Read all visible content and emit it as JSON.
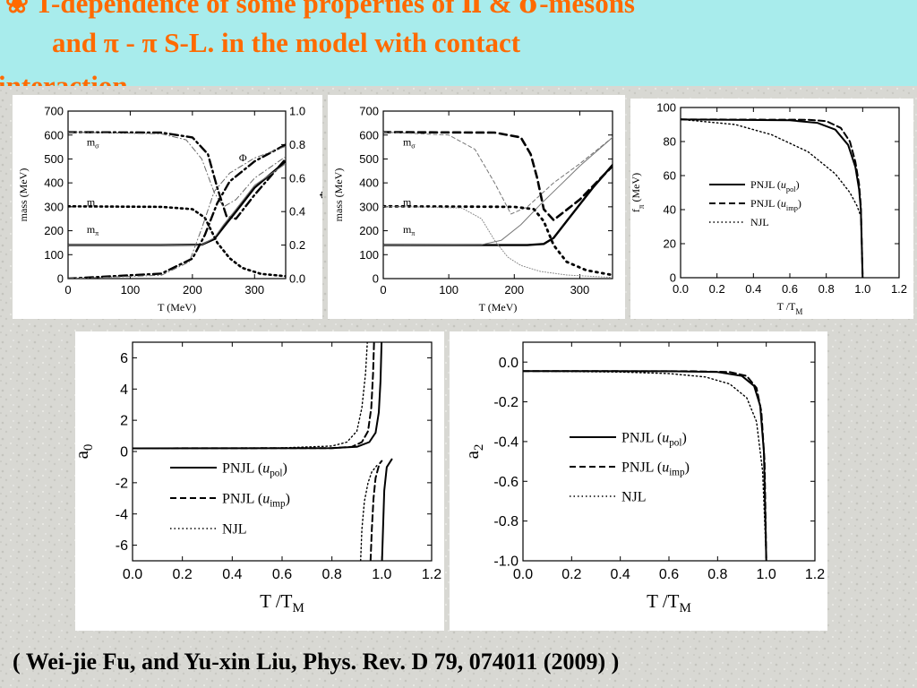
{
  "slide": {
    "title_line1_prefix": "T-dependence of some properties of ",
    "title_pi": "π",
    "title_amp": " & ",
    "title_sigma": "σ",
    "title_line1_suffix": "-mesons",
    "title_line2": "and π - π  S-L. in the model with contact",
    "title_line3": "interaction",
    "bullet_color": "#ff6a00",
    "title_color": "#ff6a00",
    "title_band_color": "#a8ecec",
    "citation": "( Wei-jie Fu, and  Yu-xin Liu,  Phys. Rev. D 79, 074011 (2009) )"
  },
  "chart_data": [
    {
      "id": "panel1",
      "type": "line",
      "xlabel": "T (MeV)",
      "ylabel": "mass (MeV)",
      "y2label": "Φ",
      "xlim": [
        0,
        350
      ],
      "ylim": [
        0,
        700
      ],
      "y2lim": [
        0,
        1.0
      ],
      "xticks": [
        0,
        100,
        200,
        300
      ],
      "yticks": [
        0,
        100,
        200,
        300,
        400,
        500,
        600,
        700
      ],
      "y2ticks": [
        "0.0",
        "0.2",
        "0.4",
        "0.6",
        "0.8",
        "1.0"
      ],
      "annotations": [
        {
          "text": "m",
          "sub": "σ",
          "x": 30,
          "y": 555
        },
        {
          "text": "m",
          "sub": "",
          "x": 30,
          "y": 305
        },
        {
          "text": "m",
          "sub": "π",
          "x": 30,
          "y": 190
        },
        {
          "text": "Φ",
          "x": 275,
          "y": 490
        }
      ],
      "series": [
        {
          "style": "thick-dashdot",
          "x": [
            0,
            150,
            200,
            225,
            240,
            255,
            270,
            300,
            350
          ],
          "y": [
            612,
            610,
            590,
            520,
            380,
            260,
            250,
            350,
            500
          ]
        },
        {
          "style": "thin-dashdot",
          "x": [
            0,
            150,
            190,
            215,
            235,
            250,
            270,
            300,
            350
          ],
          "y": [
            612,
            605,
            580,
            500,
            360,
            300,
            330,
            420,
            510
          ]
        },
        {
          "style": "thick-solid",
          "x": [
            0,
            150,
            215,
            235,
            250,
            270,
            300,
            350
          ],
          "y": [
            140,
            140,
            142,
            165,
            215,
            280,
            380,
            490
          ]
        },
        {
          "style": "thin-solid",
          "x": [
            0,
            150,
            215,
            235,
            250,
            270,
            300,
            350
          ],
          "y": [
            140,
            140,
            142,
            170,
            225,
            290,
            390,
            480
          ]
        },
        {
          "style": "dots",
          "x": [
            0,
            150,
            200,
            220,
            240,
            260,
            280,
            310,
            350
          ],
          "y": [
            302,
            300,
            290,
            255,
            150,
            85,
            45,
            20,
            10
          ]
        },
        {
          "style": "thick-dashdot-phi",
          "x": [
            0,
            150,
            200,
            220,
            240,
            260,
            300,
            350
          ],
          "y": [
            0,
            0.03,
            0.12,
            0.26,
            0.45,
            0.58,
            0.7,
            0.8
          ]
        },
        {
          "style": "thin-dashdot-phi",
          "x": [
            0,
            150,
            195,
            215,
            235,
            260,
            300,
            350
          ],
          "y": [
            0,
            0.02,
            0.1,
            0.3,
            0.52,
            0.63,
            0.72,
            0.79
          ]
        }
      ]
    },
    {
      "id": "panel2",
      "type": "line",
      "xlabel": "T (MeV)",
      "ylabel": "mass (MeV)",
      "xlim": [
        0,
        350
      ],
      "ylim": [
        0,
        700
      ],
      "xticks": [
        0,
        100,
        200,
        300
      ],
      "yticks": [
        0,
        100,
        200,
        300,
        400,
        500,
        600,
        700
      ],
      "annotations": [
        {
          "text": "m",
          "sub": "σ",
          "x": 30,
          "y": 555
        },
        {
          "text": "m",
          "sub": "",
          "x": 30,
          "y": 305
        },
        {
          "text": "m",
          "sub": "π",
          "x": 30,
          "y": 190
        }
      ],
      "series": [
        {
          "style": "thick-dash",
          "x": [
            0,
            170,
            210,
            225,
            235,
            245,
            260,
            300,
            350
          ],
          "y": [
            612,
            610,
            590,
            520,
            420,
            290,
            245,
            330,
            470
          ]
        },
        {
          "style": "thin-dash",
          "x": [
            0,
            100,
            140,
            170,
            195,
            220,
            260,
            300,
            350
          ],
          "y": [
            612,
            600,
            540,
            400,
            270,
            300,
            400,
            480,
            590
          ]
        },
        {
          "style": "thick-solid",
          "x": [
            0,
            220,
            245,
            260,
            280,
            320,
            350
          ],
          "y": [
            140,
            140,
            145,
            170,
            240,
            380,
            475
          ]
        },
        {
          "style": "thin-solid",
          "x": [
            0,
            150,
            180,
            210,
            240,
            270,
            300,
            350
          ],
          "y": [
            140,
            142,
            160,
            225,
            310,
            390,
            470,
            590
          ]
        },
        {
          "style": "thick-dots",
          "x": [
            0,
            200,
            230,
            245,
            260,
            280,
            310,
            350
          ],
          "y": [
            302,
            300,
            290,
            240,
            140,
            70,
            35,
            15
          ]
        },
        {
          "style": "thin-dots",
          "x": [
            0,
            120,
            150,
            170,
            190,
            210,
            240,
            280,
            350
          ],
          "y": [
            302,
            295,
            250,
            160,
            90,
            55,
            30,
            15,
            5
          ]
        }
      ]
    },
    {
      "id": "panel3",
      "type": "line",
      "xlabel": "T /T",
      "xlabel_sub": "M",
      "ylabel": "f",
      "ylabel_sub": "π",
      "ylabel_suffix": " (MeV)",
      "xlim": [
        0.0,
        1.2
      ],
      "ylim": [
        0,
        100
      ],
      "xticks": [
        "0.0",
        "0.2",
        "0.4",
        "0.6",
        "0.8",
        "1.0",
        "1.2"
      ],
      "yticks": [
        0,
        20,
        40,
        60,
        80,
        100
      ],
      "legend": [
        {
          "style": "solid",
          "text": "PNJL (",
          "italic": "u",
          "sub": "pol",
          "close": ")"
        },
        {
          "style": "dash",
          "text": "PNJL (",
          "italic": "u",
          "sub": "imp",
          "close": ")"
        },
        {
          "style": "dot",
          "text": "NJL"
        }
      ],
      "legend_position": "center",
      "series": [
        {
          "name": "PNJL (upol)",
          "style": "solid",
          "x": [
            0,
            0.6,
            0.75,
            0.85,
            0.92,
            0.96,
            0.98,
            0.99,
            1.0
          ],
          "y": [
            93,
            92.5,
            91,
            87,
            78,
            65,
            52,
            40,
            0
          ]
        },
        {
          "name": "PNJL (uimp)",
          "style": "dash",
          "x": [
            0,
            0.7,
            0.8,
            0.88,
            0.93,
            0.96,
            0.98,
            0.99,
            1.0
          ],
          "y": [
            93,
            92.8,
            92,
            88,
            80,
            68,
            55,
            42,
            0
          ]
        },
        {
          "name": "NJL",
          "style": "dot",
          "x": [
            0,
            0.3,
            0.5,
            0.7,
            0.85,
            0.93,
            0.97,
            0.99,
            1.0
          ],
          "y": [
            93,
            90,
            84,
            74,
            61,
            50,
            42,
            36,
            0
          ]
        }
      ]
    },
    {
      "id": "panel4",
      "type": "line",
      "xlabel": "T /T",
      "xlabel_sub": "M",
      "ylabel": "a",
      "ylabel_sub": "0",
      "xlim": [
        0.0,
        1.2
      ],
      "ylim": [
        -7,
        7
      ],
      "xticks": [
        "0.0",
        "0.2",
        "0.4",
        "0.6",
        "0.8",
        "1.0",
        "1.2"
      ],
      "yticks": [
        6,
        4,
        2,
        0,
        -2,
        -4,
        -6
      ],
      "legend": [
        {
          "style": "solid",
          "text": "PNJL (",
          "italic": "u",
          "sub": "pol",
          "close": ")"
        },
        {
          "style": "dash",
          "text": "PNJL (",
          "italic": "u",
          "sub": "imp",
          "close": ")"
        },
        {
          "style": "dot",
          "text": "NJL"
        }
      ],
      "legend_position": "lower-left",
      "series": [
        {
          "name": "PNJL (upol)",
          "style": "solid",
          "x": [
            0,
            0.8,
            0.9,
            0.95,
            0.975,
            0.988,
            0.995,
            0.999
          ],
          "y": [
            0.2,
            0.22,
            0.3,
            0.6,
            1.2,
            2.5,
            4.5,
            7
          ]
        },
        {
          "name": "PNJL (upol)",
          "style": "solid",
          "x": [
            1.001,
            1.005,
            1.01,
            1.02,
            1.04
          ],
          "y": [
            -7,
            -5,
            -2.5,
            -1.0,
            -0.5
          ],
          "hidden_reflect": true
        },
        {
          "name": "PNJL (uimp)",
          "style": "dash",
          "x": [
            0,
            0.8,
            0.88,
            0.92,
            0.945,
            0.958,
            0.965,
            0.969
          ],
          "y": [
            0.2,
            0.22,
            0.3,
            0.6,
            1.3,
            2.8,
            5,
            7
          ]
        },
        {
          "name": "PNJL (uimp) low",
          "style": "dash",
          "x": [
            0.955,
            0.96,
            0.967,
            0.975,
            0.99,
            1.0
          ],
          "y": [
            -7,
            -5,
            -3,
            -1.7,
            -0.8,
            -0.6
          ]
        },
        {
          "name": "NJL",
          "style": "dot",
          "x": [
            0,
            0.6,
            0.8,
            0.86,
            0.9,
            0.92,
            0.935,
            0.942
          ],
          "y": [
            0.2,
            0.23,
            0.35,
            0.6,
            1.3,
            2.8,
            5,
            7
          ]
        },
        {
          "name": "NJL low",
          "style": "dot",
          "x": [
            0.915,
            0.92,
            0.93,
            0.945,
            0.96,
            0.98
          ],
          "y": [
            -7,
            -5,
            -3.2,
            -2.0,
            -1.3,
            -0.9
          ]
        }
      ]
    },
    {
      "id": "panel5",
      "type": "line",
      "xlabel": "T /T",
      "xlabel_sub": "M",
      "ylabel": "a",
      "ylabel_sub": "2",
      "xlim": [
        0.0,
        1.2
      ],
      "ylim": [
        -1.0,
        0.1
      ],
      "xticks": [
        "0.0",
        "0.2",
        "0.4",
        "0.6",
        "0.8",
        "1.0",
        "1.2"
      ],
      "yticks": [
        "0.0",
        "-0.2",
        "-0.4",
        "-0.6",
        "-0.8",
        "-1.0"
      ],
      "legend": [
        {
          "style": "solid",
          "text": "PNJL (",
          "italic": "u",
          "sub": "pol",
          "close": ")"
        },
        {
          "style": "dash",
          "text": "PNJL (",
          "italic": "u",
          "sub": "imp",
          "close": ")"
        },
        {
          "style": "dot",
          "text": "NJL"
        }
      ],
      "legend_position": "center",
      "series": [
        {
          "name": "PNJL (upol)",
          "style": "solid",
          "x": [
            0,
            0.6,
            0.8,
            0.9,
            0.95,
            0.975,
            0.99,
            1.0
          ],
          "y": [
            -0.045,
            -0.046,
            -0.05,
            -0.07,
            -0.12,
            -0.22,
            -0.45,
            -1.0
          ]
        },
        {
          "name": "PNJL (uimp)",
          "style": "dash",
          "x": [
            0,
            0.7,
            0.85,
            0.92,
            0.96,
            0.98,
            0.993,
            1.0
          ],
          "y": [
            -0.045,
            -0.046,
            -0.05,
            -0.07,
            -0.13,
            -0.25,
            -0.5,
            -1.0
          ]
        },
        {
          "name": "NJL",
          "style": "dot",
          "x": [
            0,
            0.4,
            0.6,
            0.75,
            0.85,
            0.92,
            0.96,
            0.985,
            1.0
          ],
          "y": [
            -0.045,
            -0.05,
            -0.058,
            -0.075,
            -0.11,
            -0.18,
            -0.3,
            -0.55,
            -1.0
          ]
        }
      ]
    }
  ]
}
